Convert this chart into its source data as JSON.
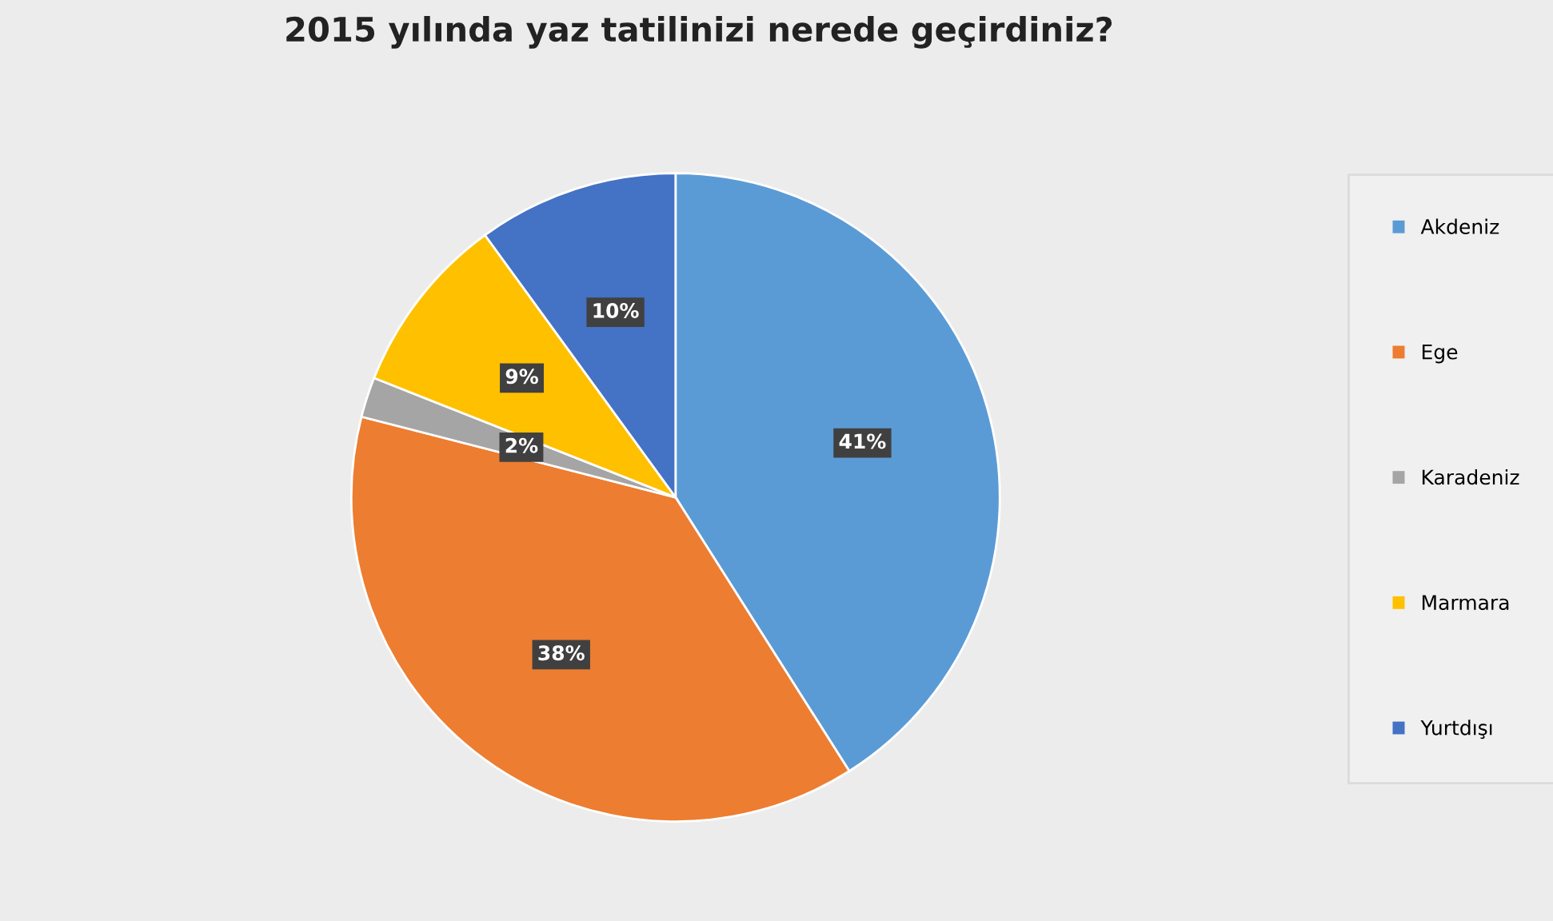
{
  "chart_data": {
    "type": "pie",
    "title": "2015 yılında yaz tatilinizi nerede geçirdiniz?",
    "categories": [
      "Akdeniz",
      "Ege",
      "Karadeniz",
      "Marmara",
      "Yurtdışı"
    ],
    "values": [
      41,
      38,
      2,
      9,
      10
    ],
    "colors": [
      "#5b9bd5",
      "#ed7d31",
      "#a5a5a5",
      "#ffc000",
      "#4472c4"
    ],
    "value_labels": [
      "41%",
      "38%",
      "2%",
      "9%",
      "10%"
    ],
    "legend": "right"
  }
}
